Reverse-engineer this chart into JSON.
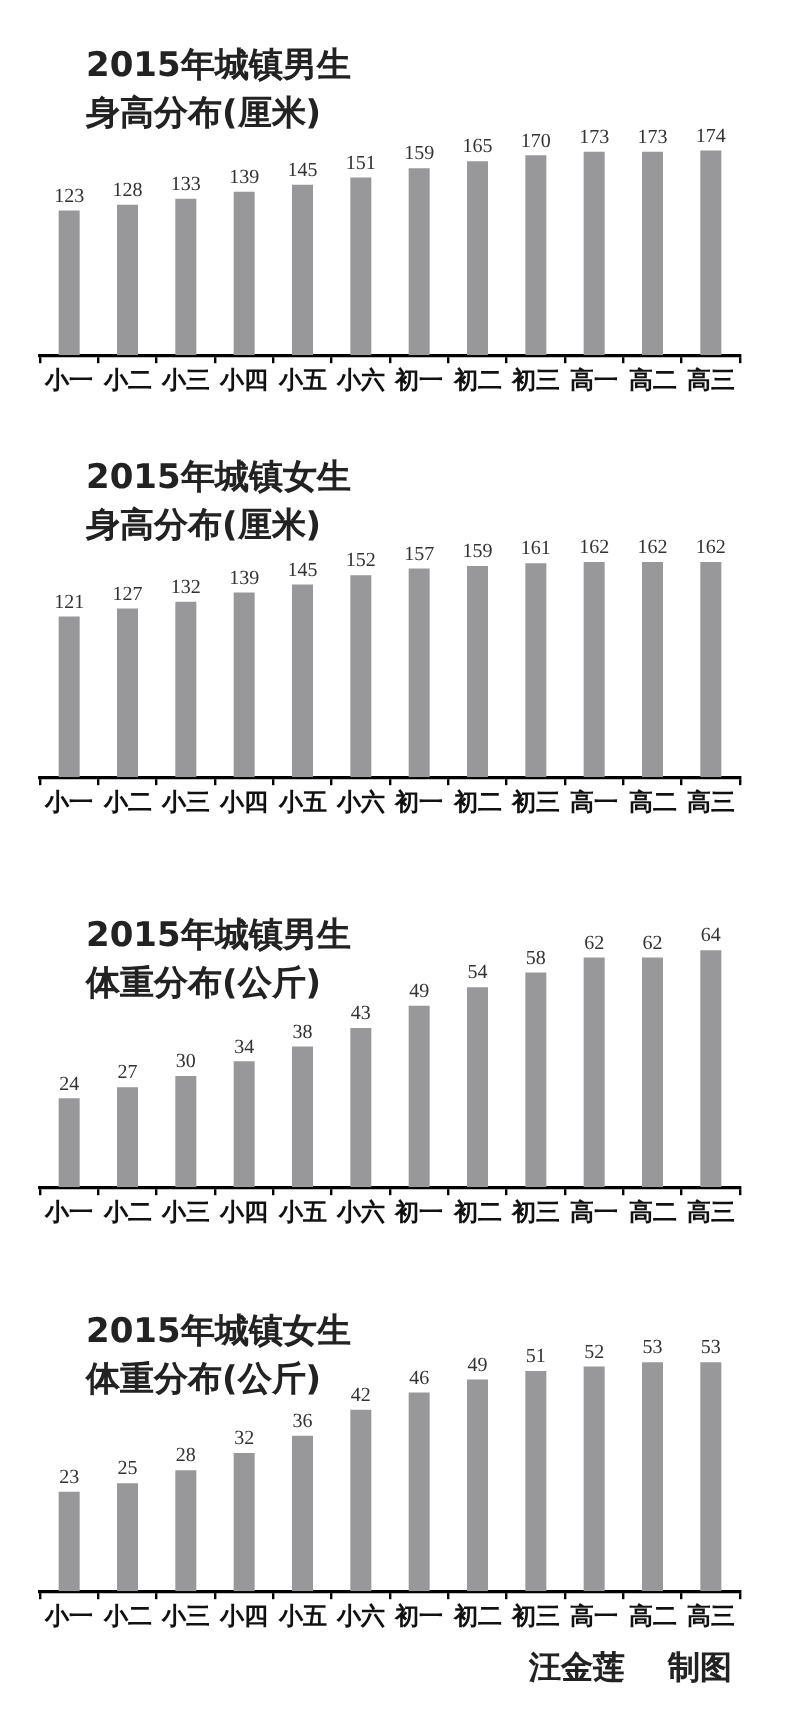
{
  "chart_data": [
    {
      "type": "bar",
      "title": "2015年城镇男生",
      "subtitle": "身高分布(厘米)",
      "categories": [
        "小一",
        "小二",
        "小三",
        "小四",
        "小五",
        "小六",
        "初一",
        "初二",
        "初三",
        "高一",
        "高二",
        "高三"
      ],
      "values": [
        123,
        128,
        133,
        139,
        145,
        151,
        159,
        165,
        170,
        173,
        173,
        174
      ],
      "color": "#98989b",
      "tick_labels": "x",
      "data_labels": true
    },
    {
      "type": "bar",
      "title": "2015年城镇女生",
      "subtitle": "身高分布(厘米)",
      "categories": [
        "小一",
        "小二",
        "小三",
        "小四",
        "小五",
        "小六",
        "初一",
        "初二",
        "初三",
        "高一",
        "高二",
        "高三"
      ],
      "values": [
        121,
        127,
        132,
        139,
        145,
        152,
        157,
        159,
        161,
        162,
        162,
        162
      ],
      "color": "#98989b",
      "tick_labels": "x",
      "data_labels": true
    },
    {
      "type": "bar",
      "title": "2015年城镇男生",
      "subtitle": "体重分布(公斤)",
      "categories": [
        "小一",
        "小二",
        "小三",
        "小四",
        "小五",
        "小六",
        "初一",
        "初二",
        "初三",
        "高一",
        "高二",
        "高三"
      ],
      "values": [
        24,
        27,
        30,
        34,
        38,
        43,
        49,
        54,
        58,
        62,
        62,
        64
      ],
      "color": "#98989b",
      "tick_labels": "x",
      "data_labels": true
    },
    {
      "type": "bar",
      "title": "2015年城镇女生",
      "subtitle": "体重分布(公斤)",
      "categories": [
        "小一",
        "小二",
        "小三",
        "小四",
        "小五",
        "小六",
        "初一",
        "初二",
        "初三",
        "高一",
        "高二",
        "高三"
      ],
      "values": [
        23,
        25,
        28,
        32,
        36,
        42,
        46,
        49,
        51,
        52,
        53,
        53
      ],
      "color": "#98989b",
      "tick_labels": "x",
      "data_labels": true,
      "annotations": [
        "汪金莲 制图"
      ]
    }
  ]
}
